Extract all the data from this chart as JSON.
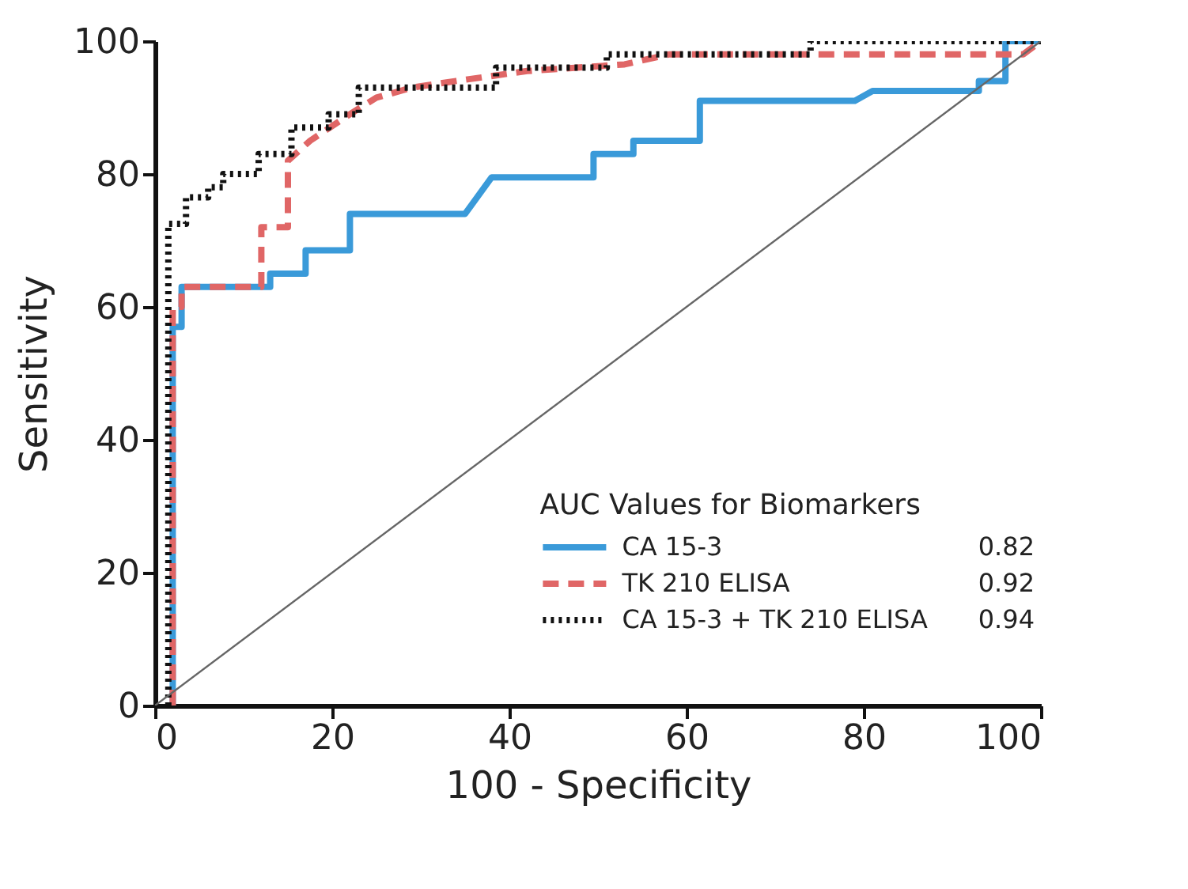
{
  "chart_data": {
    "type": "line",
    "xlabel": "100 - Specificity",
    "ylabel": "Sensitivity",
    "legend_title": "AUC Values for Biomarkers",
    "xlim": [
      0,
      100
    ],
    "ylim": [
      0,
      100
    ],
    "xticks": [
      0,
      20,
      40,
      60,
      80,
      100
    ],
    "yticks": [
      0,
      20,
      40,
      60,
      80,
      100
    ],
    "grid": false,
    "legend": "bottom right",
    "marker": "none",
    "annotations": [
      "0.82",
      "0.92",
      "0.94"
    ],
    "series": [
      {
        "name": "CA 15-3",
        "color": "#3a9ad9",
        "line_style": "solid",
        "x": [
          2,
          2,
          3,
          3,
          13,
          13,
          17,
          17,
          22,
          22,
          35,
          38,
          49.5,
          49.5,
          54,
          54,
          61.5,
          61.5,
          79,
          81,
          93,
          93,
          96,
          96,
          100
        ],
        "values": [
          0,
          57,
          57,
          63,
          63,
          65,
          65,
          68.5,
          68.5,
          74,
          74,
          79.5,
          79.5,
          83,
          83,
          85,
          85,
          91,
          91,
          92.5,
          92.5,
          94,
          94,
          100,
          100
        ]
      },
      {
        "name": "TK 210 ELISA",
        "color": "#e06666",
        "line_style": "dashed",
        "x": [
          2,
          2,
          3,
          3,
          12,
          12,
          15,
          15,
          17.5,
          22,
          25,
          29,
          34,
          42,
          53,
          58,
          98,
          100
        ],
        "values": [
          0,
          60,
          60,
          63,
          63,
          72,
          72,
          82,
          85,
          89,
          91.5,
          93,
          94,
          95.5,
          96.5,
          98,
          98,
          100
        ]
      },
      {
        "name": "CA 15-3 + TK 210 ELISA",
        "color": "#111111",
        "line_style": "dotted",
        "x": [
          1.5,
          1.5,
          3.5,
          3.5,
          6,
          6,
          7.7,
          7.7,
          11.7,
          11.7,
          15.4,
          15.4,
          19.6,
          19.6,
          23,
          23,
          38.5,
          38.5,
          51,
          51,
          74,
          74,
          100
        ],
        "values": [
          0,
          72.5,
          72.5,
          76.5,
          76.5,
          78,
          78,
          80,
          80,
          83,
          83,
          87,
          87,
          89,
          89,
          93,
          93,
          96,
          96,
          98,
          98,
          100,
          100
        ]
      },
      {
        "color": "#666666",
        "line_style": "solid",
        "x": [
          0,
          100
        ],
        "values": [
          0,
          100
        ]
      }
    ]
  }
}
